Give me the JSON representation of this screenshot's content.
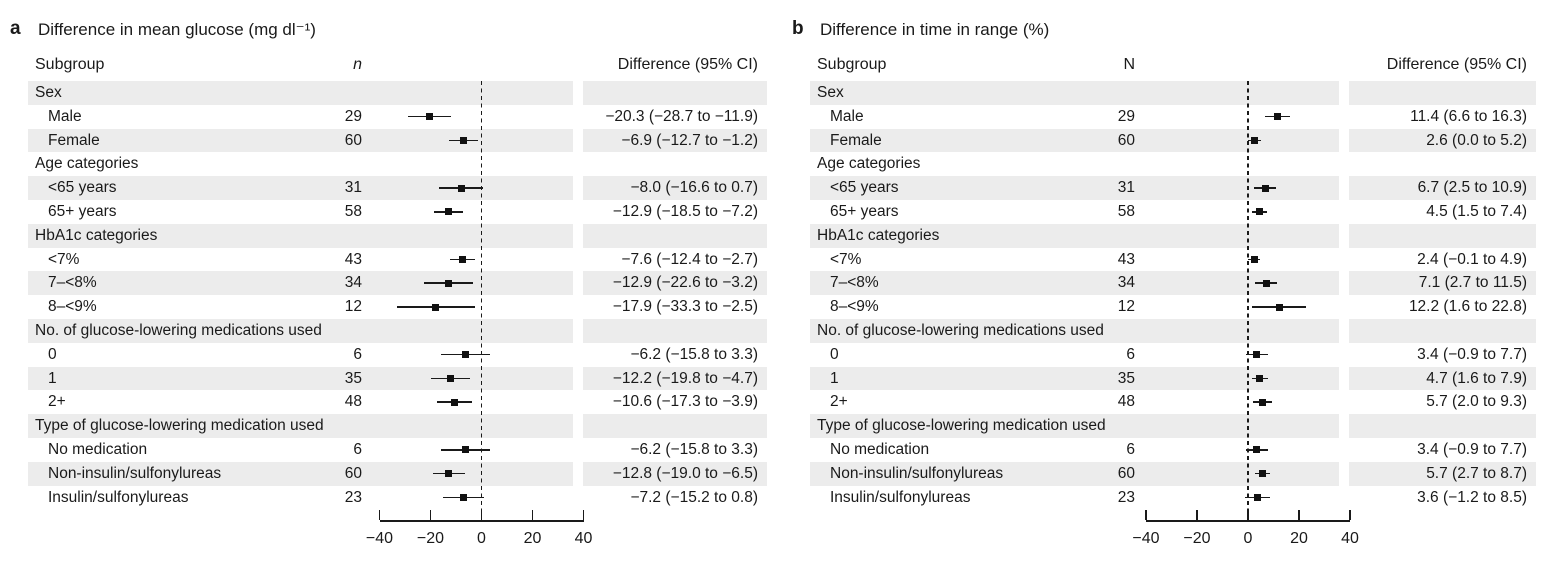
{
  "figure": {
    "background_color": "#ffffff",
    "text_color": "#1a1a1a",
    "row_band_color": "#ececec",
    "marker_color": "#111111"
  },
  "panels": [
    {
      "label": "a",
      "title": "Difference in mean glucose (mg dl⁻¹)",
      "col_subgroup": "Subgroup",
      "col_n": "n",
      "col_diff": "Difference (95% CI)"
    },
    {
      "label": "b",
      "title": "Difference in time in range (%)",
      "col_subgroup": "Subgroup",
      "col_n": "N",
      "col_diff": "Difference (95% CI)"
    }
  ],
  "chart_data": [
    {
      "type": "forest",
      "panel": "a",
      "title": "Difference in mean glucose (mg dl⁻¹)",
      "x_axis": {
        "min": -40,
        "max": 40,
        "zero_line": 0,
        "ticks": [
          {
            "value": -40,
            "label": "−40"
          },
          {
            "value": -20,
            "label": "−20"
          },
          {
            "value": 0,
            "label": "0"
          },
          {
            "value": 20,
            "label": "20"
          },
          {
            "value": 40,
            "label": "40"
          }
        ]
      },
      "rows": [
        {
          "type": "group",
          "label": "Sex"
        },
        {
          "type": "item",
          "label": "Male",
          "n": "29",
          "estimate": -20.3,
          "ci_low": -28.7,
          "ci_high": -11.9,
          "ci_text": "−20.3 (−28.7 to −11.9)"
        },
        {
          "type": "item",
          "label": "Female",
          "n": "60",
          "estimate": -6.9,
          "ci_low": -12.7,
          "ci_high": -1.2,
          "ci_text": "−6.9 (−12.7 to −1.2)"
        },
        {
          "type": "group",
          "label": "Age categories"
        },
        {
          "type": "item",
          "label": "<65 years",
          "n": "31",
          "estimate": -8.0,
          "ci_low": -16.6,
          "ci_high": 0.7,
          "ci_text": "−8.0 (−16.6 to 0.7)"
        },
        {
          "type": "item",
          "label": "65+ years",
          "n": "58",
          "estimate": -12.9,
          "ci_low": -18.5,
          "ci_high": -7.2,
          "ci_text": "−12.9 (−18.5 to −7.2)"
        },
        {
          "type": "group",
          "label": "HbA1c categories"
        },
        {
          "type": "item",
          "label": "<7%",
          "n": "43",
          "estimate": -7.6,
          "ci_low": -12.4,
          "ci_high": -2.7,
          "ci_text": "−7.6 (−12.4 to −2.7)"
        },
        {
          "type": "item",
          "label": "7–<8%",
          "n": "34",
          "estimate": -12.9,
          "ci_low": -22.6,
          "ci_high": -3.2,
          "ci_text": "−12.9 (−22.6 to −3.2)"
        },
        {
          "type": "item",
          "label": "8–<9%",
          "n": "12",
          "estimate": -17.9,
          "ci_low": -33.3,
          "ci_high": -2.5,
          "ci_text": "−17.9 (−33.3 to −2.5)"
        },
        {
          "type": "group",
          "label": "No. of glucose-lowering medications used"
        },
        {
          "type": "item",
          "label": "0",
          "n": "6",
          "estimate": -6.2,
          "ci_low": -15.8,
          "ci_high": 3.3,
          "ci_text": "−6.2 (−15.8 to 3.3)"
        },
        {
          "type": "item",
          "label": "1",
          "n": "35",
          "estimate": -12.2,
          "ci_low": -19.8,
          "ci_high": -4.7,
          "ci_text": "−12.2 (−19.8 to −4.7)"
        },
        {
          "type": "item",
          "label": "2+",
          "n": "48",
          "estimate": -10.6,
          "ci_low": -17.3,
          "ci_high": -3.9,
          "ci_text": "−10.6 (−17.3 to −3.9)"
        },
        {
          "type": "group",
          "label": "Type of glucose-lowering medication used"
        },
        {
          "type": "item",
          "label": "No medication",
          "n": "6",
          "estimate": -6.2,
          "ci_low": -15.8,
          "ci_high": 3.3,
          "ci_text": "−6.2 (−15.8 to 3.3)"
        },
        {
          "type": "item",
          "label": "Non-insulin/sulfonylureas",
          "n": "60",
          "estimate": -12.8,
          "ci_low": -19.0,
          "ci_high": -6.5,
          "ci_text": "−12.8 (−19.0 to −6.5)"
        },
        {
          "type": "item",
          "label": "Insulin/sulfonylureas",
          "n": "23",
          "estimate": -7.2,
          "ci_low": -15.2,
          "ci_high": 0.8,
          "ci_text": "−7.2 (−15.2 to 0.8)"
        }
      ]
    },
    {
      "type": "forest",
      "panel": "b",
      "title": "Difference in time in range (%)",
      "x_axis": {
        "min": -40,
        "max": 40,
        "zero_line": 0,
        "ticks": [
          {
            "value": -40,
            "label": "−40"
          },
          {
            "value": -20,
            "label": "−20"
          },
          {
            "value": 0,
            "label": "0"
          },
          {
            "value": 20,
            "label": "20"
          },
          {
            "value": 40,
            "label": "40"
          }
        ]
      },
      "rows": [
        {
          "type": "group",
          "label": "Sex"
        },
        {
          "type": "item",
          "label": "Male",
          "n": "29",
          "estimate": 11.4,
          "ci_low": 6.6,
          "ci_high": 16.3,
          "ci_text": "11.4 (6.6 to 16.3)"
        },
        {
          "type": "item",
          "label": "Female",
          "n": "60",
          "estimate": 2.6,
          "ci_low": 0.0,
          "ci_high": 5.2,
          "ci_text": "2.6 (0.0 to 5.2)"
        },
        {
          "type": "group",
          "label": "Age categories"
        },
        {
          "type": "item",
          "label": "<65 years",
          "n": "31",
          "estimate": 6.7,
          "ci_low": 2.5,
          "ci_high": 10.9,
          "ci_text": "6.7 (2.5 to 10.9)"
        },
        {
          "type": "item",
          "label": "65+ years",
          "n": "58",
          "estimate": 4.5,
          "ci_low": 1.5,
          "ci_high": 7.4,
          "ci_text": "4.5 (1.5 to 7.4)"
        },
        {
          "type": "group",
          "label": "HbA1c categories"
        },
        {
          "type": "item",
          "label": "<7%",
          "n": "43",
          "estimate": 2.4,
          "ci_low": -0.1,
          "ci_high": 4.9,
          "ci_text": "2.4 (−0.1 to 4.9)"
        },
        {
          "type": "item",
          "label": "7–<8%",
          "n": "34",
          "estimate": 7.1,
          "ci_low": 2.7,
          "ci_high": 11.5,
          "ci_text": "7.1 (2.7 to 11.5)"
        },
        {
          "type": "item",
          "label": "8–<9%",
          "n": "12",
          "estimate": 12.2,
          "ci_low": 1.6,
          "ci_high": 22.8,
          "ci_text": "12.2 (1.6 to 22.8)"
        },
        {
          "type": "group",
          "label": "No. of glucose-lowering medications used"
        },
        {
          "type": "item",
          "label": "0",
          "n": "6",
          "estimate": 3.4,
          "ci_low": -0.9,
          "ci_high": 7.7,
          "ci_text": "3.4 (−0.9 to 7.7)"
        },
        {
          "type": "item",
          "label": "1",
          "n": "35",
          "estimate": 4.7,
          "ci_low": 1.6,
          "ci_high": 7.9,
          "ci_text": "4.7 (1.6 to 7.9)"
        },
        {
          "type": "item",
          "label": "2+",
          "n": "48",
          "estimate": 5.7,
          "ci_low": 2.0,
          "ci_high": 9.3,
          "ci_text": "5.7 (2.0 to 9.3)"
        },
        {
          "type": "group",
          "label": "Type of glucose-lowering medication used"
        },
        {
          "type": "item",
          "label": "No medication",
          "n": "6",
          "estimate": 3.4,
          "ci_low": -0.9,
          "ci_high": 7.7,
          "ci_text": "3.4 (−0.9 to 7.7)"
        },
        {
          "type": "item",
          "label": "Non-insulin/sulfonylureas",
          "n": "60",
          "estimate": 5.7,
          "ci_low": 2.7,
          "ci_high": 8.7,
          "ci_text": "5.7 (2.7 to 8.7)"
        },
        {
          "type": "item",
          "label": "Insulin/sulfonylureas",
          "n": "23",
          "estimate": 3.6,
          "ci_low": -1.2,
          "ci_high": 8.5,
          "ci_text": "3.6 (−1.2 to 8.5)"
        }
      ]
    }
  ]
}
